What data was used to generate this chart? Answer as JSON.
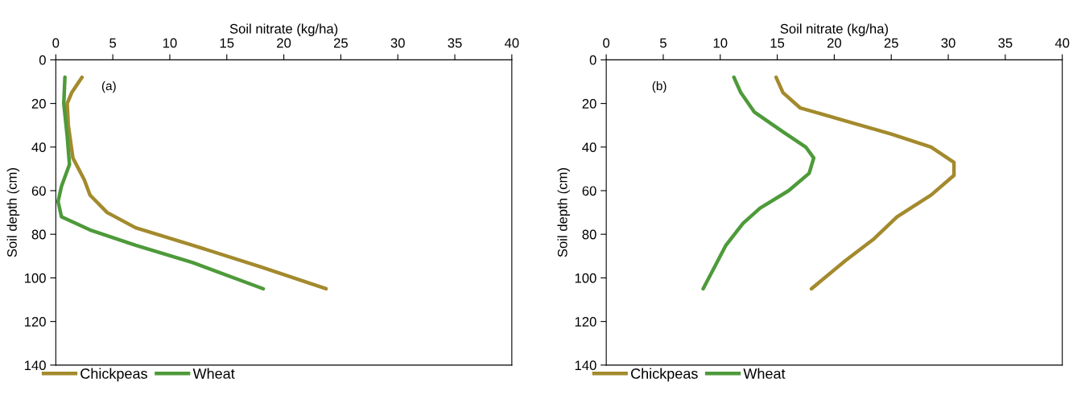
{
  "chart_data": [
    {
      "type": "line",
      "xlabel": "Soil nitrate (kg/ha)",
      "ylabel": "Soil depth (cm)",
      "annotations": [
        "(a)"
      ],
      "xlim": [
        0,
        40
      ],
      "xticks": [
        0,
        5,
        10,
        15,
        20,
        25,
        30,
        35,
        40
      ],
      "ylim": [
        140,
        0
      ],
      "yticks": [
        0,
        20,
        40,
        60,
        80,
        100,
        120,
        140
      ],
      "grid": false,
      "legend": "bottom",
      "marker": "none",
      "line_style": "solid",
      "series": [
        {
          "name": "Chickpeas",
          "color": "#a38a2d",
          "x": [
            2.3,
            1.4,
            1.0,
            1.1,
            1.5,
            2.5,
            3.0,
            4.5,
            7.0,
            12.0,
            18.0,
            23.7
          ],
          "values": [
            8,
            15,
            20,
            30,
            45,
            55,
            62,
            70,
            77,
            85,
            95,
            105
          ]
        },
        {
          "name": "Wheat",
          "color": "#4e9a3a",
          "x": [
            0.8,
            0.7,
            1.0,
            1.2,
            0.5,
            0.2,
            0.5,
            3.0,
            7.0,
            12.0,
            18.2
          ],
          "values": [
            8,
            20,
            35,
            48,
            58,
            65,
            72,
            78,
            85,
            93,
            105
          ]
        }
      ]
    },
    {
      "type": "line",
      "xlabel": "Soil nitrate (kg/ha)",
      "ylabel": "Soil depth (cm)",
      "annotations": [
        "(b)"
      ],
      "xlim": [
        0,
        40
      ],
      "xticks": [
        0,
        5,
        10,
        15,
        20,
        25,
        30,
        35,
        40
      ],
      "ylim": [
        140,
        0
      ],
      "yticks": [
        0,
        20,
        40,
        60,
        80,
        100,
        120,
        140
      ],
      "grid": false,
      "legend": "bottom",
      "marker": "none",
      "line_style": "solid",
      "series": [
        {
          "name": "Chickpeas",
          "color": "#a38a2d",
          "x": [
            14.9,
            15.5,
            17.0,
            21.0,
            25.0,
            28.5,
            30.5,
            30.5,
            28.5,
            25.5,
            23.5,
            21.0,
            18.0
          ],
          "values": [
            8,
            15,
            22,
            28,
            34,
            40,
            47,
            53,
            62,
            72,
            82,
            92,
            105
          ]
        },
        {
          "name": "Wheat",
          "color": "#4e9a3a",
          "x": [
            11.2,
            11.8,
            13.0,
            15.5,
            17.5,
            18.2,
            17.8,
            16.0,
            13.5,
            12.0,
            10.5,
            8.5
          ],
          "values": [
            8,
            15,
            24,
            33,
            40,
            45,
            52,
            60,
            68,
            75,
            85,
            105
          ]
        }
      ]
    }
  ]
}
